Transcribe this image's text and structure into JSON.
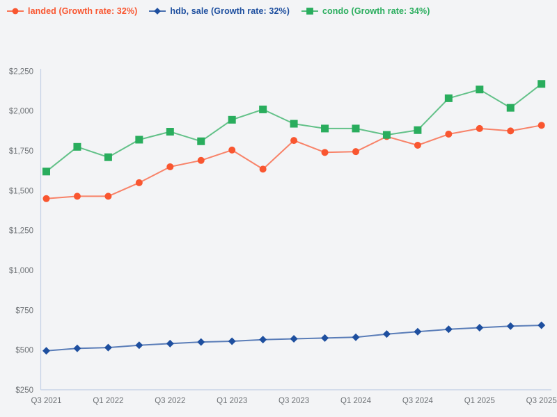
{
  "chart": {
    "background": "#f3f4f6",
    "axis_color": "#c6d2e6",
    "tick_label_color": "#6d7175"
  },
  "chart_data": {
    "type": "line",
    "title": "",
    "xlabel": "",
    "ylabel": "",
    "categories": [
      "Q3 2021",
      "Q4 2021",
      "Q1 2022",
      "Q2 2022",
      "Q3 2022",
      "Q4 2022",
      "Q1 2023",
      "Q2 2023",
      "Q3 2023",
      "Q4 2023",
      "Q1 2024",
      "Q2 2024",
      "Q3 2024",
      "Q4 2024",
      "Q1 2025",
      "Q2 2025",
      "Q3 2025"
    ],
    "series": [
      {
        "name": "landed (Growth rate: 32%)",
        "color": "#f95630",
        "marker": "circle",
        "values": [
          1450,
          1465,
          1465,
          1550,
          1650,
          1690,
          1755,
          1635,
          1815,
          1740,
          1745,
          1840,
          1785,
          1855,
          1890,
          1875,
          1910
        ]
      },
      {
        "name": "hdb, sale (Growth rate: 32%)",
        "color": "#1e4f9f",
        "marker": "diamond",
        "values": [
          495,
          510,
          515,
          530,
          540,
          550,
          555,
          565,
          570,
          575,
          580,
          600,
          615,
          630,
          640,
          650,
          655
        ]
      },
      {
        "name": "condo (Growth rate: 34%)",
        "color": "#29ad5d",
        "marker": "square",
        "values": [
          1620,
          1775,
          1710,
          1820,
          1870,
          1810,
          1945,
          2010,
          1920,
          1890,
          1890,
          1850,
          1880,
          2080,
          2135,
          2020,
          2170
        ]
      }
    ],
    "yticks": [
      "$250",
      "$500",
      "$750",
      "$1,000",
      "$1,250",
      "$1,500",
      "$1,750",
      "$2,000",
      "$2,250"
    ],
    "xticks": [
      "Q3 2021",
      "Q1 2022",
      "Q3 2022",
      "Q1 2023",
      "Q3 2023",
      "Q1 2024",
      "Q3 2024",
      "Q1 2025",
      "Q3 2025"
    ],
    "ylim": [
      250,
      2250
    ],
    "grid": false,
    "legend_position": "top-left"
  }
}
